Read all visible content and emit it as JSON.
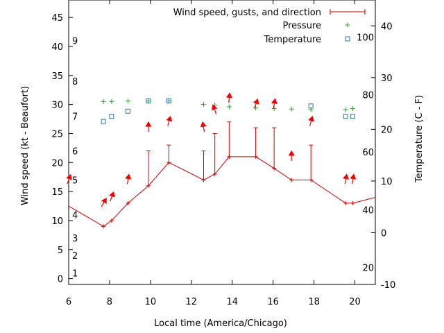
{
  "chart_data": {
    "type": "scatter",
    "xlabel": "Local time (America/Chicago)",
    "ylabel": "Wind speed (kt - Beaufort)",
    "y2label": "Temperature (C - F)",
    "xlim": [
      6,
      21
    ],
    "ylim": [
      -1,
      48
    ],
    "y2lim": [
      -10,
      45
    ],
    "x_ticks": [
      6,
      8,
      10,
      12,
      14,
      16,
      18,
      20
    ],
    "y_ticks": [
      0,
      5,
      10,
      15,
      20,
      25,
      30,
      35,
      40,
      45
    ],
    "y2_ticks": [
      -10,
      0,
      10,
      20,
      30,
      40
    ],
    "beaufort_labels": [
      {
        "scale": "1",
        "at_kt": 1
      },
      {
        "scale": "2",
        "at_kt": 4
      },
      {
        "scale": "3",
        "at_kt": 7
      },
      {
        "scale": "4",
        "at_kt": 11
      },
      {
        "scale": "5",
        "at_kt": 17
      },
      {
        "scale": "6",
        "at_kt": 22
      },
      {
        "scale": "7",
        "at_kt": 28
      },
      {
        "scale": "8",
        "at_kt": 34
      },
      {
        "scale": "9",
        "at_kt": 41
      }
    ],
    "fahrenheit_labels": [
      {
        "label": "20",
        "at_c": -6.7
      },
      {
        "label": "40",
        "at_c": 4.4
      },
      {
        "label": "60",
        "at_c": 15.6
      },
      {
        "label": "80",
        "at_c": 26.7
      },
      {
        "label": "100",
        "at_c": 37.8
      }
    ],
    "legend": {
      "position": "top-right",
      "entries": [
        "Wind speed, gusts, and direction",
        "Pressure",
        "Temperature"
      ]
    },
    "colors": {
      "wind": "#cc0000",
      "pressure": "#2ca02c",
      "temperature": "#1f77b4",
      "arrow": "#ee0000"
    },
    "series": [
      {
        "name": "Wind speed, gusts, and direction",
        "x": [
          6.0,
          7.7,
          8.1,
          8.9,
          9.9,
          10.9,
          12.6,
          13.15,
          13.85,
          15.15,
          16.05,
          16.9,
          17.85,
          19.55,
          19.9,
          21.0
        ],
        "speed": [
          12.5,
          9,
          10,
          13,
          16,
          20,
          17,
          18,
          21,
          21,
          19,
          17,
          17,
          13,
          13,
          14
        ],
        "gust": [
          null,
          null,
          null,
          null,
          22,
          23,
          22,
          25,
          27,
          26,
          26,
          null,
          23,
          null,
          null,
          null
        ]
      },
      {
        "name": "Pressure",
        "x": [
          7.7,
          8.1,
          8.9,
          9.9,
          10.9,
          12.6,
          13.15,
          13.85,
          15.15,
          16.05,
          16.9,
          17.85,
          19.55,
          19.9
        ],
        "values": [
          30.5,
          30.5,
          30.6,
          30.6,
          30.6,
          30.0,
          29.9,
          29.6,
          29.4,
          29.3,
          29.2,
          29.1,
          29.1,
          29.3
        ]
      },
      {
        "name": "Temperature",
        "x": [
          7.7,
          8.1,
          8.9,
          9.9,
          10.9,
          17.85,
          19.55,
          19.9
        ],
        "values": [
          21.5,
          22.5,
          23.5,
          25.5,
          25.5,
          24.5,
          22.5,
          22.5
        ]
      }
    ],
    "wind_arrows": {
      "x": [
        6.0,
        7.7,
        8.1,
        8.9,
        9.9,
        10.9,
        12.6,
        13.15,
        13.85,
        15.15,
        16.05,
        16.9,
        17.85,
        19.55,
        19.9
      ],
      "at_kt": [
        17,
        13,
        14,
        17,
        26,
        27,
        26,
        29,
        31,
        30,
        30,
        21,
        27,
        17,
        17
      ],
      "direction_deg": [
        200,
        210,
        200,
        190,
        180,
        195,
        170,
        160,
        185,
        200,
        190,
        180,
        195,
        190,
        190
      ]
    }
  }
}
